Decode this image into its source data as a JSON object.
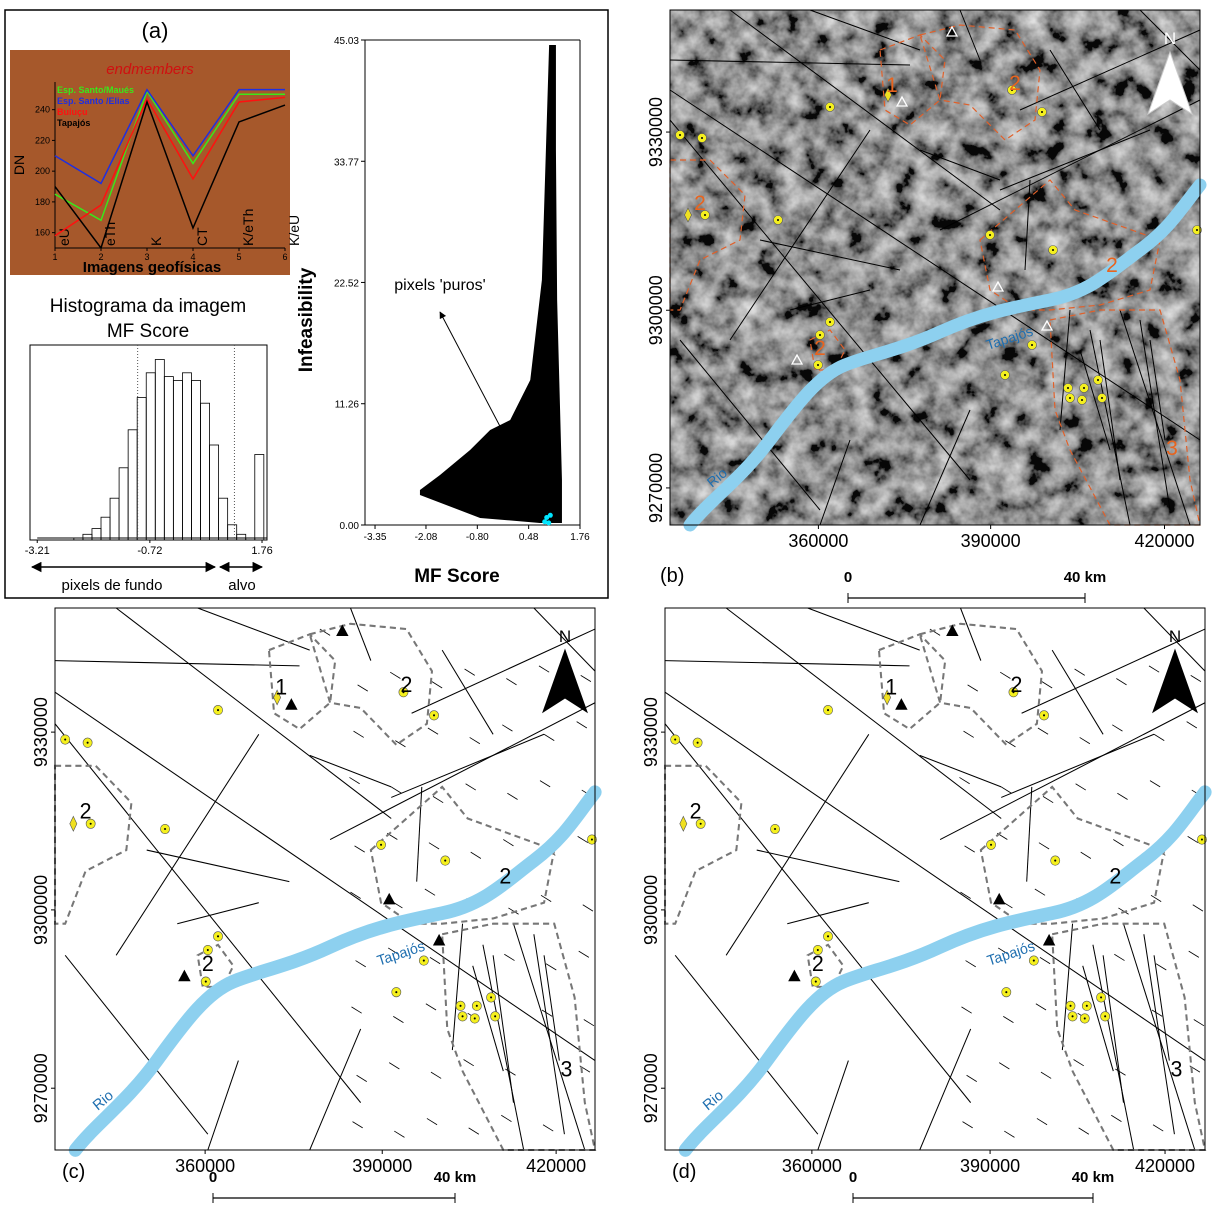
{
  "figure": {
    "panels": [
      "(a)",
      "(b)",
      "(c)",
      "(d)"
    ]
  },
  "chart_data": [
    {
      "type": "line",
      "title": "endmembers",
      "background": "#a6582b",
      "x": [
        1,
        2,
        3,
        4,
        5,
        6
      ],
      "categories": [
        "eU",
        "eTh",
        "K",
        "CT",
        "K/eTh",
        "K/eU"
      ],
      "series": [
        {
          "name": "Esp. Santo/Maués",
          "color": "#39e81a",
          "values": [
            185,
            168,
            252,
            205,
            250,
            250
          ]
        },
        {
          "name": "Esp. Santo /Elias",
          "color": "#1f2fe0",
          "values": [
            210,
            192,
            253,
            210,
            253,
            253
          ]
        },
        {
          "name": "Buiuçu",
          "color": "#ff1010",
          "values": [
            158,
            178,
            247,
            195,
            245,
            248
          ]
        },
        {
          "name": "Tapajós",
          "color": "#000000",
          "values": [
            190,
            150,
            245,
            163,
            232,
            243
          ]
        }
      ],
      "xlim": [
        1,
        6
      ],
      "xticks": [
        1,
        2,
        3,
        4,
        5,
        6
      ],
      "ylim": [
        150,
        258
      ],
      "yticks": [
        160,
        180,
        200,
        220,
        240
      ],
      "ylabel": "DN",
      "xlabel": "Imagens geofísicas"
    },
    {
      "type": "histogram",
      "title": [
        "Histograma da imagem",
        "MF Score"
      ],
      "bins": [
        -2.4,
        -2.2,
        -2.0,
        -1.8,
        -1.6,
        -1.4,
        -1.2,
        -1.0,
        -0.8,
        -0.6,
        -0.4,
        -0.2,
        0.0,
        0.2,
        0.4,
        0.6,
        0.8,
        1.0,
        1.2,
        1.4,
        1.6,
        1.8
      ],
      "counts": [
        1,
        3,
        6,
        12,
        22,
        38,
        58,
        75,
        88,
        95,
        86,
        84,
        88,
        84,
        72,
        50,
        22,
        8,
        3,
        1,
        45
      ],
      "color": "#000000",
      "xlim": [
        -3.37,
        1.87
      ],
      "xticks": [
        -3.21,
        -0.72,
        1.76
      ],
      "ylim": [
        0,
        100
      ],
      "thresholds": [
        -0.99,
        1.15
      ],
      "annotations": [
        "pixels de fundo",
        "alvo"
      ]
    },
    {
      "type": "scatter",
      "series": [
        {
          "color": "#000000",
          "x": [
            -2.23,
            -0.73,
            0.76,
            1.31,
            1.31,
            1.19,
            1.16,
            1.16,
            0.99,
            0.91,
            0.81,
            0.52,
            0.02,
            -0.48,
            -0.98,
            -1.73,
            -2.23
          ],
          "y": [
            2.79,
            0.65,
            0.19,
            0.19,
            4.18,
            20.89,
            34.82,
            44.57,
            44.57,
            34.82,
            22.75,
            13.46,
            9.75,
            8.82,
            6.96,
            4.64,
            3.25
          ]
        },
        {
          "color": "#00e5ff",
          "x": [
            0.88,
            0.93,
            0.98,
            1.02
          ],
          "y": [
            0.3,
            0.7,
            0.2,
            0.9
          ]
        }
      ],
      "xlim": [
        -3.6,
        1.76
      ],
      "xticks": [
        -3.35,
        -2.08,
        {
          "value": -0.8,
          "label": "-0.80"
        },
        0.48,
        1.76
      ],
      "ylim": [
        0,
        45.03
      ],
      "yticks": [
        {
          "value": 0,
          "label": "0.00"
        },
        11.26,
        22.52,
        33.77,
        45.03
      ],
      "xlabel": "MF Score",
      "ylabel": "Infeasibility",
      "annotation": "pixels 'puros'"
    }
  ],
  "map": {
    "easting": [
      "360000",
      "390000",
      "420000"
    ],
    "northing": [
      "9330000",
      "9300000",
      "9270000"
    ],
    "scale": [
      "0",
      "40 km"
    ],
    "north": "N",
    "river": [
      "Rio",
      "Tapajós"
    ],
    "regions": [
      "1",
      "2",
      "2",
      "2",
      "2",
      "3"
    ]
  }
}
